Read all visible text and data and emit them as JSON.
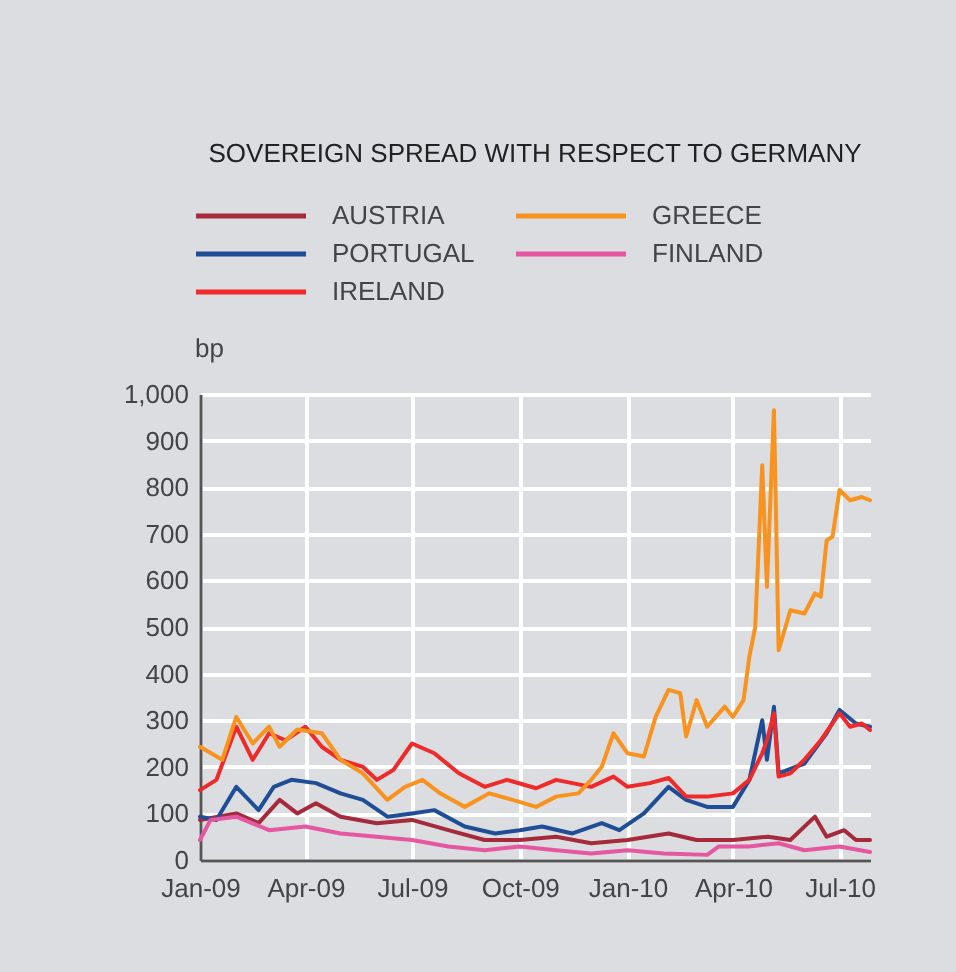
{
  "chart_data": {
    "type": "line",
    "title": "SOVEREIGN SPREAD WITH RESPECT TO GERMANY",
    "ylabel": "bp",
    "legend": "top",
    "grid": true,
    "line_style": "solid",
    "xlim": [
      "2009-01-01",
      "2010-07-27"
    ],
    "xticks": [
      {
        "value": "2009-01-01",
        "label": "Jan-09"
      },
      {
        "value": "2009-04-01",
        "label": "Apr-09"
      },
      {
        "value": "2009-07-01",
        "label": "Jul-09"
      },
      {
        "value": "2009-10-01",
        "label": "Oct-09"
      },
      {
        "value": "2010-01-01",
        "label": "Jan-10"
      },
      {
        "value": "2010-04-01",
        "label": "Apr-10"
      },
      {
        "value": "2010-07-01",
        "label": "Jul-10"
      }
    ],
    "ylim": [
      0,
      1000
    ],
    "yticks": [
      0,
      100,
      200,
      300,
      400,
      500,
      600,
      700,
      800,
      900,
      {
        "value": 1000,
        "label": "1,000"
      }
    ],
    "series": [
      {
        "name": "AUSTRIA",
        "color": "#a52a3c",
        "x": [
          "2009-01-01",
          "2009-02-01",
          "2009-02-20",
          "2009-03-10",
          "2009-03-25",
          "2009-04-10",
          "2009-05-01",
          "2009-06-01",
          "2009-07-01",
          "2009-08-01",
          "2009-09-01",
          "2009-10-01",
          "2009-11-01",
          "2009-12-01",
          "2010-01-01",
          "2010-02-05",
          "2010-03-01",
          "2010-04-01",
          "2010-05-01",
          "2010-05-20",
          "2010-06-10",
          "2010-06-20",
          "2010-07-05",
          "2010-07-15",
          "2010-07-27"
        ],
        "values": [
          86,
          100,
          79,
          129,
          100,
          122,
          93,
          79,
          86,
          64,
          43,
          43,
          50,
          36,
          43,
          57,
          43,
          43,
          50,
          43,
          93,
          50,
          64,
          43,
          43
        ]
      },
      {
        "name": "PORTUGAL",
        "color": "#1f4e96",
        "x": [
          "2009-01-01",
          "2009-01-15",
          "2009-02-01",
          "2009-02-20",
          "2009-03-05",
          "2009-03-20",
          "2009-04-10",
          "2009-05-01",
          "2009-05-20",
          "2009-06-10",
          "2009-07-01",
          "2009-07-20",
          "2009-08-15",
          "2009-09-10",
          "2009-10-01",
          "2009-10-20",
          "2009-11-15",
          "2009-12-10",
          "2009-12-25",
          "2010-01-15",
          "2010-02-05",
          "2010-02-20",
          "2010-03-10",
          "2010-04-01",
          "2010-04-15",
          "2010-04-26",
          "2010-04-30",
          "2010-05-06",
          "2010-05-10",
          "2010-06-01",
          "2010-06-20",
          "2010-07-01",
          "2010-07-15",
          "2010-07-27"
        ],
        "values": [
          93,
          86,
          157,
          107,
          157,
          172,
          165,
          143,
          129,
          93,
          100,
          107,
          72,
          57,
          64,
          72,
          57,
          79,
          64,
          100,
          157,
          129,
          114,
          114,
          172,
          300,
          215,
          329,
          186,
          207,
          272,
          322,
          293,
          286
        ]
      },
      {
        "name": "IRELAND",
        "color": "#ee2a2a",
        "x": [
          "2009-01-01",
          "2009-01-15",
          "2009-02-01",
          "2009-02-15",
          "2009-03-01",
          "2009-03-15",
          "2009-04-01",
          "2009-04-15",
          "2009-05-01",
          "2009-05-20",
          "2009-06-01",
          "2009-06-15",
          "2009-07-01",
          "2009-07-20",
          "2009-08-10",
          "2009-09-01",
          "2009-09-20",
          "2009-10-15",
          "2009-11-01",
          "2009-12-01",
          "2009-12-20",
          "2010-01-01",
          "2010-01-20",
          "2010-02-05",
          "2010-02-20",
          "2010-03-10",
          "2010-04-01",
          "2010-04-15",
          "2010-04-26",
          "2010-04-30",
          "2010-05-06",
          "2010-05-10",
          "2010-05-20",
          "2010-06-01",
          "2010-06-15",
          "2010-07-01",
          "2010-07-10",
          "2010-07-20",
          "2010-07-27"
        ],
        "values": [
          150,
          172,
          286,
          215,
          272,
          257,
          286,
          243,
          215,
          200,
          172,
          193,
          250,
          229,
          186,
          157,
          172,
          154,
          172,
          157,
          179,
          157,
          165,
          176,
          136,
          136,
          143,
          172,
          229,
          257,
          315,
          179,
          186,
          215,
          257,
          315,
          286,
          293,
          279
        ]
      },
      {
        "name": "GREECE",
        "color": "#f7931e",
        "x": [
          "2009-01-01",
          "2009-01-20",
          "2009-02-01",
          "2009-02-15",
          "2009-03-01",
          "2009-03-10",
          "2009-03-25",
          "2009-04-15",
          "2009-05-01",
          "2009-05-20",
          "2009-06-10",
          "2009-06-25",
          "2009-07-10",
          "2009-07-25",
          "2009-08-15",
          "2009-09-05",
          "2009-09-25",
          "2009-10-15",
          "2009-11-01",
          "2009-11-20",
          "2009-12-01",
          "2009-12-10",
          "2009-12-20",
          "2010-01-01",
          "2010-01-15",
          "2010-01-25",
          "2010-02-05",
          "2010-02-15",
          "2010-02-20",
          "2010-03-01",
          "2010-03-10",
          "2010-03-25",
          "2010-04-01",
          "2010-04-10",
          "2010-04-15",
          "2010-04-20",
          "2010-04-26",
          "2010-04-30",
          "2010-05-06",
          "2010-05-10",
          "2010-05-20",
          "2010-06-01",
          "2010-06-10",
          "2010-06-15",
          "2010-06-20",
          "2010-06-25",
          "2010-07-01",
          "2010-07-10",
          "2010-07-20",
          "2010-07-27"
        ],
        "values": [
          243,
          215,
          307,
          250,
          286,
          243,
          280,
          272,
          215,
          186,
          129,
          157,
          172,
          143,
          114,
          143,
          129,
          114,
          136,
          143,
          172,
          200,
          272,
          229,
          222,
          307,
          365,
          358,
          265,
          343,
          286,
          329,
          307,
          343,
          436,
          500,
          847,
          586,
          965,
          450,
          536,
          529,
          572,
          565,
          686,
          694,
          794,
          772,
          779,
          772
        ]
      },
      {
        "name": "FINLAND",
        "color": "#e557a0",
        "x": [
          "2009-01-01",
          "2009-01-10",
          "2009-02-01",
          "2009-03-01",
          "2009-04-01",
          "2009-05-01",
          "2009-06-01",
          "2009-07-01",
          "2009-08-01",
          "2009-09-01",
          "2009-10-01",
          "2009-11-01",
          "2009-12-01",
          "2010-01-01",
          "2010-02-01",
          "2010-03-10",
          "2010-03-20",
          "2010-04-15",
          "2010-05-10",
          "2010-06-01",
          "2010-07-01",
          "2010-07-27"
        ],
        "values": [
          43,
          86,
          93,
          64,
          72,
          57,
          50,
          43,
          29,
          21,
          29,
          21,
          14,
          21,
          14,
          11,
          29,
          29,
          36,
          21,
          29,
          17
        ]
      }
    ]
  }
}
